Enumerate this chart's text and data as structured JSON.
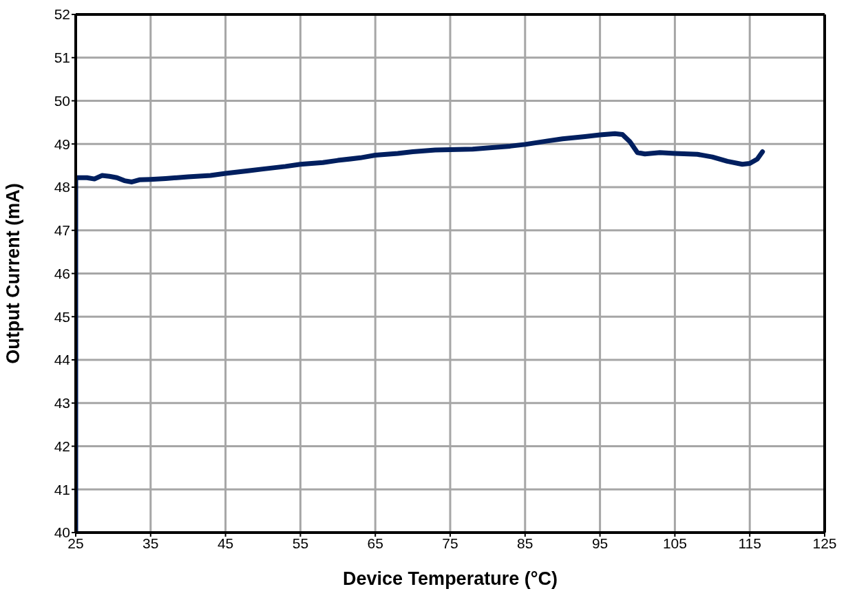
{
  "chart_data": {
    "type": "line",
    "xlabel": "Device Temperature (°C)",
    "ylabel": "Output Current (mA)",
    "xlim": [
      25,
      125
    ],
    "xticks": [
      25,
      35,
      45,
      55,
      65,
      75,
      85,
      95,
      105,
      115,
      125
    ],
    "ylim": [
      40,
      52
    ],
    "yticks": [
      40,
      41,
      42,
      43,
      44,
      45,
      46,
      47,
      48,
      49,
      50,
      51,
      52
    ],
    "grid": true,
    "marker": "none",
    "line_style": "solid",
    "series": [
      {
        "color": "#001f5f",
        "x": [
          25,
          25,
          26.5,
          27.5,
          28.5,
          29.5,
          30.5,
          31.5,
          32.5,
          33.5,
          35,
          37,
          40,
          43,
          45,
          48,
          50,
          53,
          55,
          58,
          60,
          63,
          65,
          68,
          70,
          73,
          75,
          78,
          80,
          83,
          85,
          88,
          90,
          93,
          95,
          97,
          98,
          99,
          100,
          101,
          103,
          105,
          108,
          110,
          112,
          114,
          115,
          116,
          116.7
        ],
        "values": [
          40,
          48.22,
          48.22,
          48.19,
          48.27,
          48.25,
          48.22,
          48.15,
          48.12,
          48.17,
          48.18,
          48.2,
          48.24,
          48.27,
          48.32,
          48.38,
          48.42,
          48.48,
          48.53,
          48.57,
          48.62,
          48.68,
          48.74,
          48.78,
          48.82,
          48.86,
          48.87,
          48.88,
          48.91,
          48.95,
          48.99,
          49.07,
          49.12,
          49.17,
          49.21,
          49.24,
          49.22,
          49.05,
          48.8,
          48.77,
          48.8,
          48.78,
          48.76,
          48.7,
          48.6,
          48.53,
          48.55,
          48.65,
          48.82
        ]
      }
    ]
  }
}
